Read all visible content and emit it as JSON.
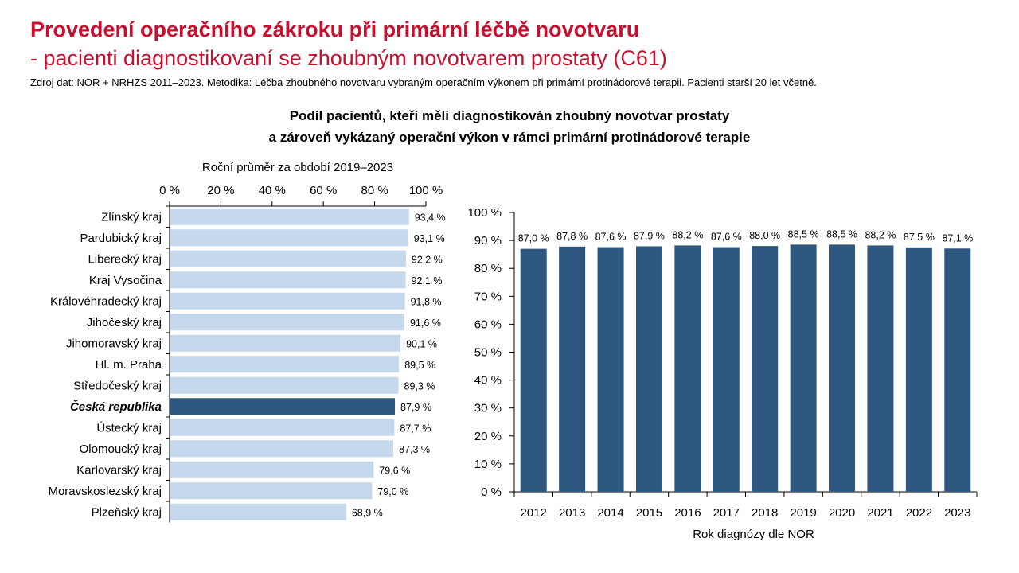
{
  "header": {
    "title": "Provedení operačního zákroku při primární léčbě novotvaru",
    "subtitle": "- pacienti diagnostikovaní se zhoubným novotvarem prostaty (C61)",
    "source": "Zdroj dat: NOR + NRHZS 2011–2023. Metodika: Léčba zhoubného novotvaru vybraným operačním výkonem při primární protinádorové terapii. Pacienti starší 20 let včetně."
  },
  "figure_title": {
    "line1": "Podíl pacientů, kteří měli diagnostikován zhoubný novotvar prostaty",
    "line2": "a zároveň vykázaný operační výkon v rámci primární protinádorové terapie"
  },
  "colors": {
    "title": "#c8102e",
    "bar_light": "#c5d8ec",
    "bar_dark": "#2e5880",
    "axis": "#000000"
  },
  "chart_data": [
    {
      "type": "bar",
      "orientation": "horizontal",
      "title": "Roční průměr za období 2019–2023",
      "xlim": [
        0,
        100
      ],
      "ticks": [
        "0 %",
        "20 %",
        "40 %",
        "60 %",
        "80 %",
        "100 %"
      ],
      "tick_values": [
        0,
        20,
        40,
        60,
        80,
        100
      ],
      "tick_position": "top",
      "highlight": "Česká republika",
      "categories": [
        "Zlínský kraj",
        "Pardubický kraj",
        "Liberecký kraj",
        "Kraj Vysočina",
        "Královéhradecký kraj",
        "Jihočeský kraj",
        "Jihomoravský kraj",
        "Hl. m. Praha",
        "Středočeský kraj",
        "Česká republika",
        "Ústecký kraj",
        "Olomoucký kraj",
        "Karlovarský kraj",
        "Moravskoslezský kraj",
        "Plzeňský kraj"
      ],
      "values": [
        93.4,
        93.1,
        92.2,
        92.1,
        91.8,
        91.6,
        90.1,
        89.5,
        89.3,
        87.9,
        87.7,
        87.3,
        79.6,
        79.0,
        68.9
      ],
      "labels": [
        "93,4 %",
        "93,1 %",
        "92,2 %",
        "92,1 %",
        "91,8 %",
        "91,6 %",
        "90,1 %",
        "89,5 %",
        "89,3 %",
        "87,9 %",
        "87,7 %",
        "87,3 %",
        "79,6 %",
        "79,0 %",
        "68,9 %"
      ]
    },
    {
      "type": "bar",
      "orientation": "vertical",
      "xlabel": "Rok diagnózy dle NOR",
      "ylim": [
        0,
        100
      ],
      "ticks": [
        "0 %",
        "10 %",
        "20 %",
        "30 %",
        "40 %",
        "50 %",
        "60 %",
        "70 %",
        "80 %",
        "90 %",
        "100 %"
      ],
      "tick_values": [
        0,
        10,
        20,
        30,
        40,
        50,
        60,
        70,
        80,
        90,
        100
      ],
      "categories": [
        "2012",
        "2013",
        "2014",
        "2015",
        "2016",
        "2017",
        "2018",
        "2019",
        "2020",
        "2021",
        "2022",
        "2023"
      ],
      "values": [
        87.0,
        87.8,
        87.6,
        87.9,
        88.2,
        87.6,
        88.0,
        88.5,
        88.5,
        88.2,
        87.5,
        87.1
      ],
      "labels": [
        "87,0 %",
        "87,8 %",
        "87,6 %",
        "87,9 %",
        "88,2 %",
        "87,6 %",
        "88,0 %",
        "88,5 %",
        "88,5 %",
        "88,2 %",
        "87,5 %",
        "87,1 %"
      ]
    }
  ]
}
